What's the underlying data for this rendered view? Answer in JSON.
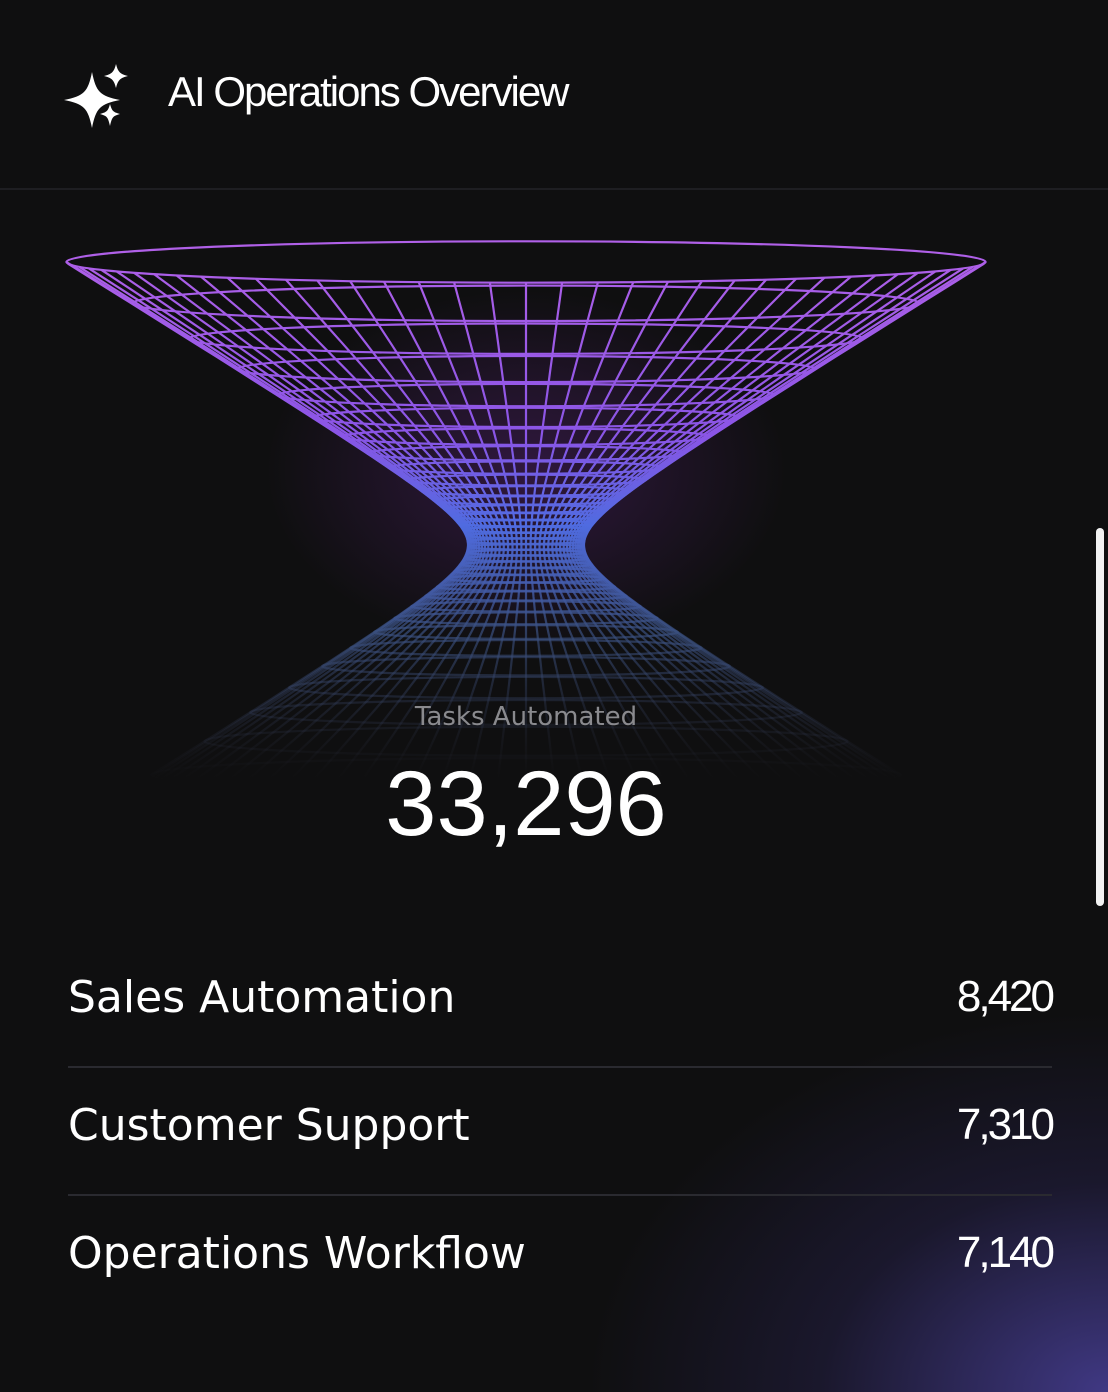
{
  "header": {
    "title": "AI Operations Overview"
  },
  "metric": {
    "label": "Tasks Automated",
    "value": "33,296"
  },
  "rows": [
    {
      "label": "Sales Automation",
      "value": "8,420"
    },
    {
      "label": "Customer Support",
      "value": "7,310"
    },
    {
      "label": "Operations Workflow",
      "value": "7,140"
    }
  ]
}
